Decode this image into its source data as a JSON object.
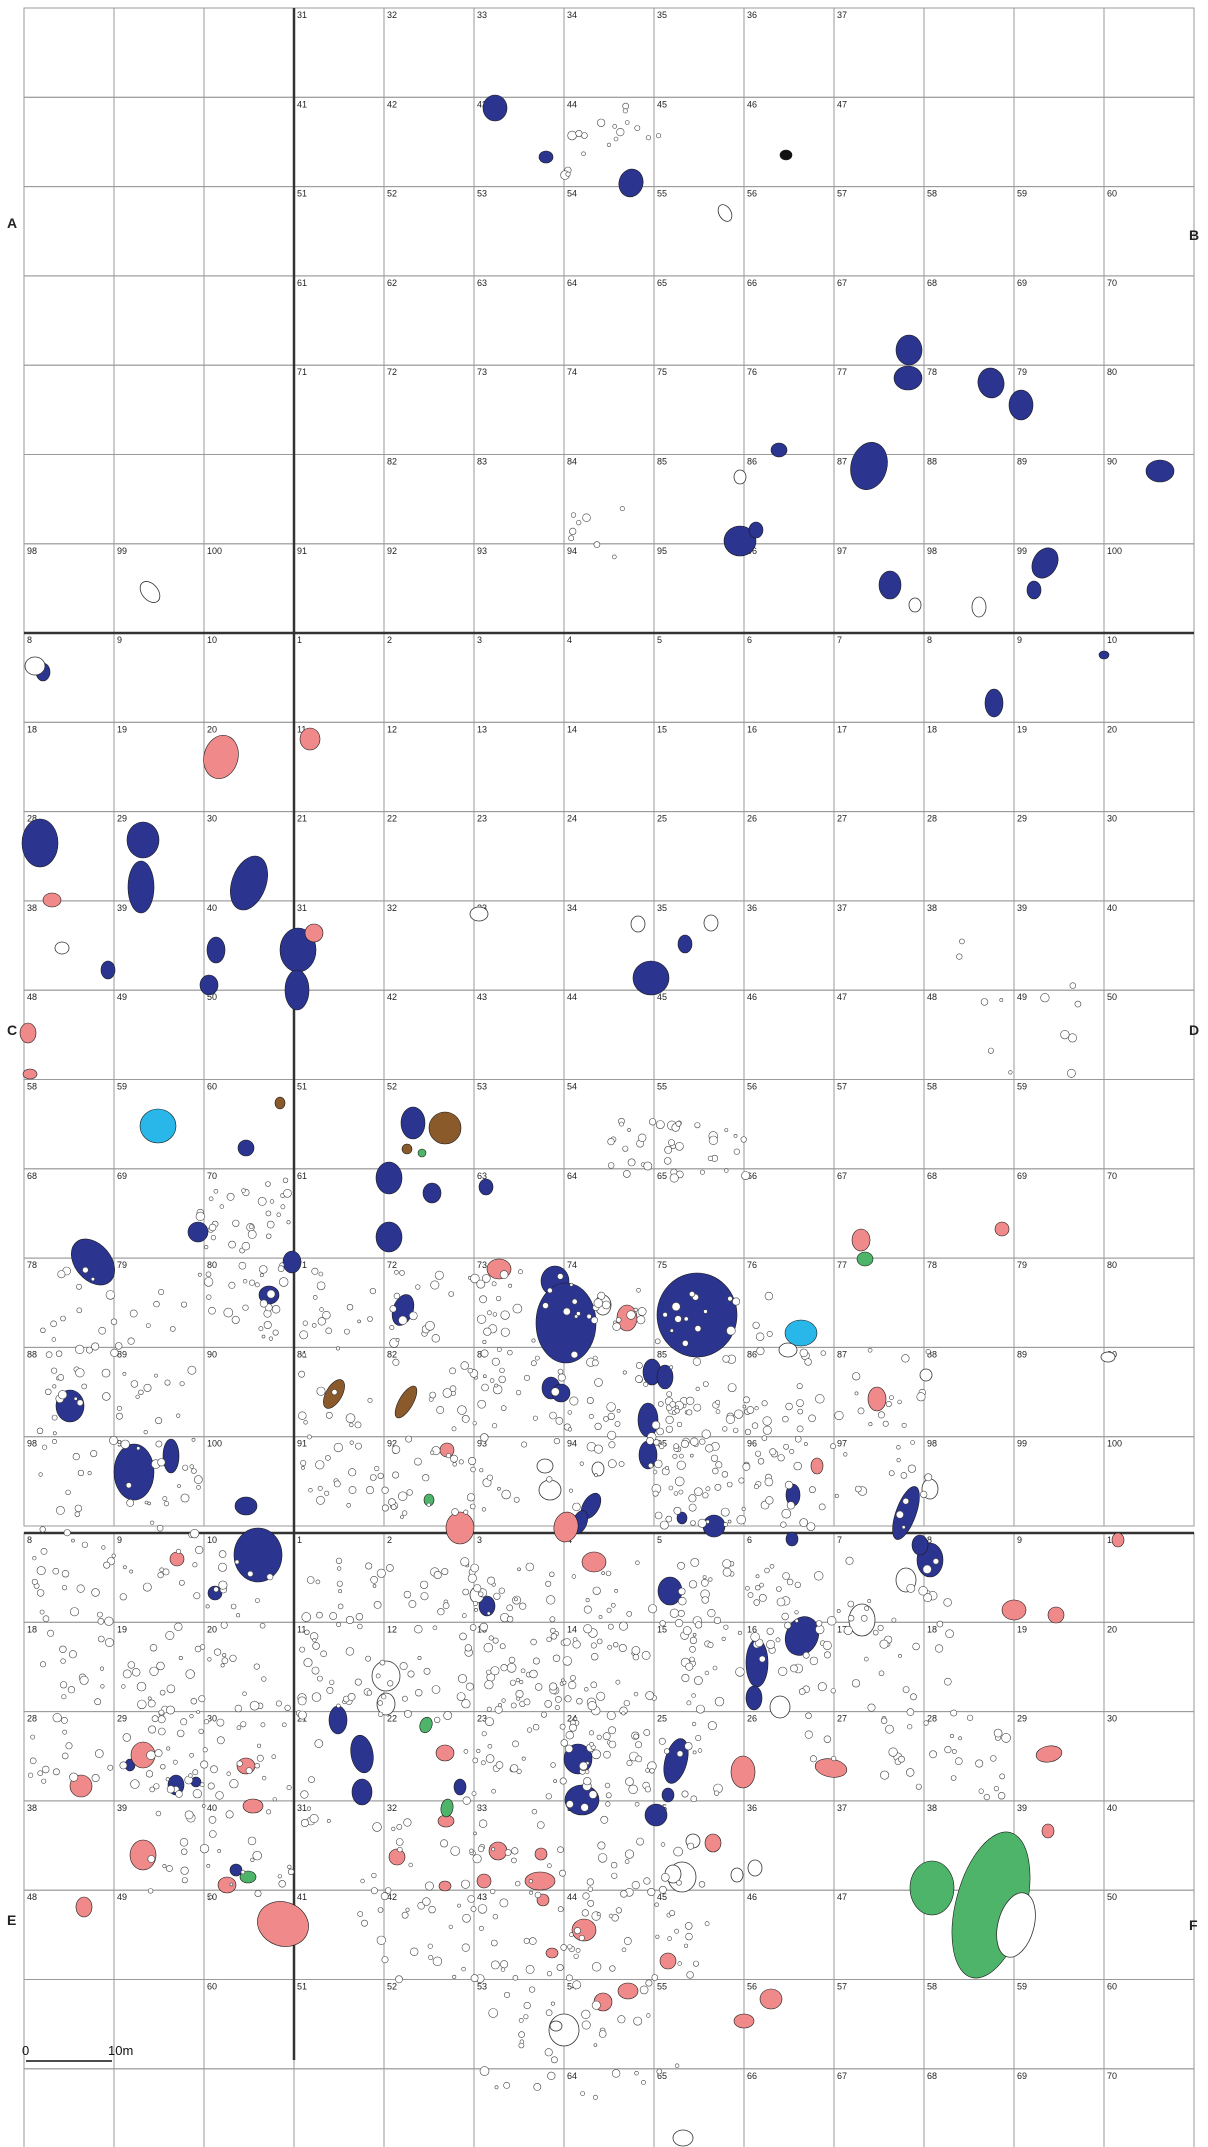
{
  "map": {
    "edge_labels": {
      "A": "A",
      "B": "B",
      "C": "C",
      "D": "D",
      "E": "E",
      "F": "F"
    },
    "scale_bar": {
      "start": "0",
      "end": "10m"
    },
    "grid_blocks": [
      {
        "name": "block-top",
        "rows": [
          [
            "",
            "",
            "",
            "31",
            "32",
            "33",
            "34",
            "35",
            "36",
            "37",
            "",
            "",
            ""
          ],
          [
            "",
            "",
            "",
            "41",
            "42",
            "43",
            "44",
            "45",
            "46",
            "47",
            "",
            "",
            ""
          ],
          [
            "",
            "",
            "",
            "51",
            "52",
            "53",
            "54",
            "55",
            "56",
            "57",
            "58",
            "59",
            "60"
          ],
          [
            "",
            "",
            "",
            "61",
            "62",
            "63",
            "64",
            "65",
            "66",
            "67",
            "68",
            "69",
            "70"
          ],
          [
            "",
            "",
            "",
            "71",
            "72",
            "73",
            "74",
            "75",
            "76",
            "77",
            "78",
            "79",
            "80"
          ],
          [
            "",
            "",
            "",
            "",
            "82",
            "83",
            "84",
            "85",
            "86",
            "87",
            "88",
            "89",
            "90"
          ],
          [
            "98",
            "99",
            "100",
            "91",
            "92",
            "93",
            "94",
            "95",
            "96",
            "97",
            "98",
            "99",
            "100"
          ]
        ]
      },
      {
        "name": "block-middle",
        "rows": [
          [
            "8",
            "9",
            "10",
            "1",
            "2",
            "3",
            "4",
            "5",
            "6",
            "7",
            "8",
            "9",
            "10"
          ],
          [
            "18",
            "19",
            "20",
            "11",
            "12",
            "13",
            "14",
            "15",
            "16",
            "17",
            "18",
            "19",
            "20"
          ],
          [
            "28",
            "29",
            "30",
            "21",
            "22",
            "23",
            "24",
            "25",
            "26",
            "27",
            "28",
            "29",
            "30"
          ],
          [
            "38",
            "39",
            "40",
            "31",
            "32",
            "33",
            "34",
            "35",
            "36",
            "37",
            "38",
            "39",
            "40"
          ],
          [
            "48",
            "49",
            "50",
            "41",
            "42",
            "43",
            "44",
            "45",
            "46",
            "47",
            "48",
            "49",
            "50"
          ],
          [
            "58",
            "59",
            "60",
            "51",
            "52",
            "53",
            "54",
            "55",
            "56",
            "57",
            "58",
            "59",
            ""
          ],
          [
            "68",
            "69",
            "70",
            "61",
            "62",
            "63",
            "64",
            "65",
            "66",
            "67",
            "68",
            "69",
            "70"
          ],
          [
            "78",
            "79",
            "80",
            "71",
            "72",
            "73",
            "74",
            "75",
            "76",
            "77",
            "78",
            "79",
            "80"
          ],
          [
            "88",
            "89",
            "90",
            "81",
            "82",
            "83",
            "84",
            "85",
            "86",
            "87",
            "88",
            "89",
            "90"
          ],
          [
            "98",
            "99",
            "100",
            "91",
            "92",
            "93",
            "94",
            "95",
            "96",
            "97",
            "98",
            "99",
            "100"
          ]
        ]
      },
      {
        "name": "block-bottom",
        "rows": [
          [
            "8",
            "9",
            "10",
            "1",
            "2",
            "3",
            "4",
            "5",
            "6",
            "7",
            "8",
            "9",
            "10"
          ],
          [
            "18",
            "19",
            "20",
            "11",
            "12",
            "13",
            "14",
            "15",
            "16",
            "17",
            "18",
            "19",
            "20"
          ],
          [
            "28",
            "29",
            "30",
            "21",
            "22",
            "23",
            "24",
            "25",
            "26",
            "27",
            "28",
            "29",
            "30"
          ],
          [
            "38",
            "39",
            "40",
            "31",
            "32",
            "33",
            "34",
            "35",
            "36",
            "37",
            "38",
            "39",
            "40"
          ],
          [
            "48",
            "49",
            "50",
            "41",
            "42",
            "43",
            "44",
            "45",
            "46",
            "47",
            "48",
            "49",
            "50"
          ],
          [
            "",
            "",
            "60",
            "51",
            "52",
            "53",
            "54",
            "55",
            "56",
            "57",
            "58",
            "59",
            "60"
          ],
          [
            "",
            "",
            "",
            "",
            "",
            "",
            "64",
            "65",
            "66",
            "67",
            "68",
            "69",
            "70"
          ]
        ]
      }
    ],
    "feature_colors": {
      "blue": "#2b3590",
      "pink": "#f08a8a",
      "green": "#4db46a",
      "brown": "#8a5a2b",
      "cyan": "#29b6e8",
      "outline": "#ffffff",
      "black": "#111111"
    }
  }
}
